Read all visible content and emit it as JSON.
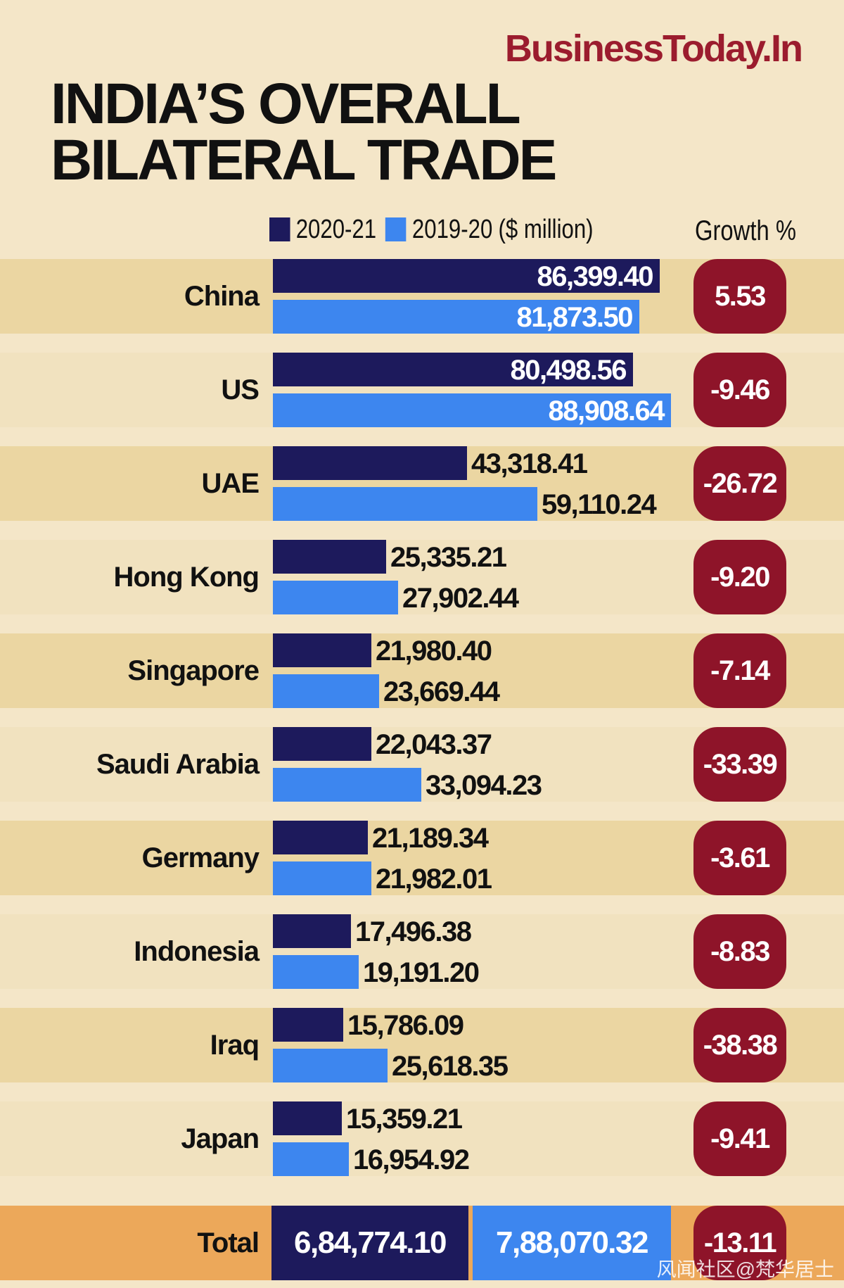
{
  "brand": "BusinessToday.In",
  "title_line1": "INDIA’S OVERALL",
  "title_line2": "BILATERAL TRADE",
  "legend": {
    "series_a": "2020-21",
    "series_b": "2019-20",
    "unit": "($ million)"
  },
  "growth_header": "Growth %",
  "colors": {
    "series_a": "#1d1a5c",
    "series_b": "#3d86ef",
    "growth_pill": "#8e1429",
    "total_band": "#eca85a"
  },
  "chart_data": {
    "type": "bar",
    "orientation": "horizontal",
    "unit": "$ million",
    "xlim": [
      0,
      88908.64
    ],
    "categories": [
      "China",
      "US",
      "UAE",
      "Hong Kong",
      "Singapore",
      "Saudi Arabia",
      "Germany",
      "Indonesia",
      "Iraq",
      "Japan"
    ],
    "series": [
      {
        "name": "2020-21",
        "values": [
          86399.4,
          80498.56,
          43318.41,
          25335.21,
          21980.4,
          22043.37,
          21189.34,
          17496.38,
          15786.09,
          15359.21
        ],
        "labels": [
          "86,399.40",
          "80,498.56",
          "43,318.41",
          "25,335.21",
          "21,980.40",
          "22,043.37",
          "21,189.34",
          "17,496.38",
          "15,786.09",
          "15,359.21"
        ]
      },
      {
        "name": "2019-20",
        "values": [
          81873.5,
          88908.64,
          59110.24,
          27902.44,
          23669.44,
          33094.23,
          21982.01,
          19191.2,
          25618.35,
          16954.92
        ],
        "labels": [
          "81,873.50",
          "88,908.64",
          "59,110.24",
          "27,902.44",
          "23,669.44",
          "33,094.23",
          "21,982.01",
          "19,191.20",
          "25,618.35",
          "16,954.92"
        ]
      }
    ],
    "growth": [
      "5.53",
      "-9.46",
      "-26.72",
      "-9.20",
      "-7.14",
      "-33.39",
      "-3.61",
      "-8.83",
      "-38.38",
      "-9.41"
    ]
  },
  "total": {
    "label": "Total",
    "value_2020_21": "6,84,774.10",
    "value_2019_20": "7,88,070.32",
    "growth": "-13.11"
  },
  "watermark": "风闻社区@梵华居士"
}
